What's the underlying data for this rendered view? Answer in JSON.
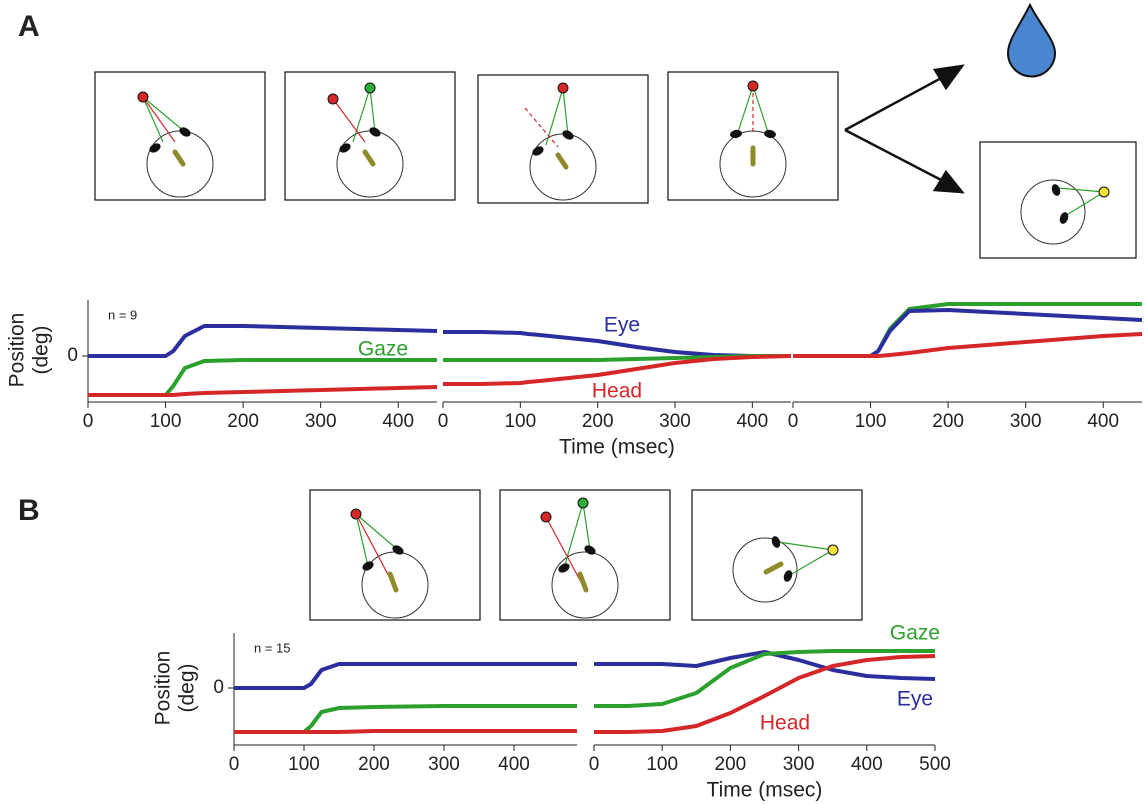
{
  "panels": [
    {
      "label": "A"
    },
    {
      "label": "B"
    }
  ],
  "chart_data": [
    {
      "type": "line",
      "annotation": "n = 9",
      "ylabel": [
        "Position",
        "(deg)"
      ],
      "x": [
        0,
        50,
        100,
        110,
        125,
        150,
        200,
        250,
        300,
        350,
        400,
        450
      ],
      "xlim": [
        0,
        450
      ],
      "xticks": [
        0,
        100,
        200,
        300,
        400
      ],
      "ylim": [
        -44,
        56
      ],
      "yticks": [
        0
      ],
      "series": [
        {
          "color": "#2b2f9e",
          "values": [
            0,
            0,
            0,
            5,
            20,
            30,
            30,
            29,
            28,
            27,
            26,
            25
          ]
        },
        {
          "name": "Gaze",
          "color": "#2ca02c",
          "values": [
            -39,
            -39,
            -39,
            -30,
            -12,
            -5,
            -4,
            -4,
            -4,
            -4,
            -4,
            -4
          ]
        },
        {
          "color": "#d62728",
          "values": [
            -39,
            -39,
            -39,
            -39,
            -38,
            -37,
            -36,
            -35,
            -34,
            -33,
            -32,
            -31
          ]
        }
      ]
    },
    {
      "type": "line",
      "xlabel": "Time (msec)",
      "x": [
        0,
        50,
        100,
        110,
        125,
        150,
        200,
        250,
        300,
        350,
        400,
        450
      ],
      "xlim": [
        0,
        450
      ],
      "xticks": [
        0,
        100,
        200,
        300,
        400
      ],
      "ylim": [
        -44,
        56
      ],
      "series": [
        {
          "name": "Eye",
          "color": "#2b2f9e",
          "values": [
            24,
            24,
            23,
            22,
            21,
            19,
            15,
            9,
            4,
            1,
            0,
            0
          ]
        },
        {
          "color": "#2ca02c",
          "values": [
            -4,
            -4,
            -4,
            -4,
            -4,
            -4,
            -4,
            -3,
            -2,
            -1,
            0,
            0
          ]
        },
        {
          "name": "Head",
          "color": "#d62728",
          "values": [
            -28,
            -28,
            -27,
            -26,
            -25,
            -23,
            -19,
            -13,
            -7,
            -3,
            -1,
            0
          ]
        }
      ]
    },
    {
      "type": "line",
      "x": [
        0,
        50,
        100,
        110,
        125,
        150,
        200,
        250,
        300,
        350,
        400,
        450
      ],
      "xlim": [
        0,
        450
      ],
      "xticks": [
        0,
        100,
        200,
        300,
        400
      ],
      "ylim": [
        -44,
        56
      ],
      "series": [
        {
          "color": "#2ca02c",
          "values": [
            0,
            0,
            0,
            5,
            27,
            47,
            52,
            52,
            52,
            52,
            52,
            52
          ]
        },
        {
          "color": "#2b2f9e",
          "values": [
            0,
            0,
            0,
            5,
            25,
            45,
            46,
            44,
            42,
            40,
            38,
            36
          ]
        },
        {
          "color": "#d62728",
          "values": [
            0,
            0,
            0,
            0,
            1,
            3,
            8,
            11,
            14,
            17,
            20,
            22
          ]
        }
      ]
    },
    {
      "type": "line",
      "annotation": "n = 15",
      "ylabel": [
        "Position",
        "(deg)"
      ],
      "x": [
        0,
        50,
        100,
        110,
        125,
        150,
        200,
        300,
        400,
        490
      ],
      "xlim": [
        0,
        490
      ],
      "xticks": [
        0,
        100,
        200,
        300,
        400
      ],
      "ylim": [
        -55,
        55
      ],
      "yticks": [
        0
      ],
      "series": [
        {
          "color": "#2b2f9e",
          "values": [
            0,
            0,
            0,
            4,
            18,
            24,
            24,
            24,
            24,
            24
          ]
        },
        {
          "color": "#2ca02c",
          "values": [
            -44,
            -44,
            -44,
            -38,
            -24,
            -20,
            -19,
            -18,
            -18,
            -18
          ]
        },
        {
          "color": "#d62728",
          "values": [
            -44,
            -44,
            -44,
            -44,
            -44,
            -44,
            -43,
            -43,
            -43,
            -43
          ]
        }
      ]
    },
    {
      "type": "line",
      "xlabel": "Time (msec)",
      "x": [
        0,
        50,
        100,
        150,
        200,
        250,
        300,
        350,
        400,
        450,
        500
      ],
      "xlim": [
        0,
        500
      ],
      "xticks": [
        0,
        100,
        200,
        300,
        400,
        500
      ],
      "ylim": [
        -55,
        55
      ],
      "series": [
        {
          "name": "Eye",
          "color": "#2b2f9e",
          "values": [
            24,
            24,
            24,
            22,
            30,
            36,
            28,
            18,
            12,
            10,
            9
          ]
        },
        {
          "name": "Gaze",
          "color": "#2ca02c",
          "values": [
            -18,
            -18,
            -16,
            -5,
            20,
            34,
            36,
            37,
            37,
            37,
            37
          ]
        },
        {
          "name": "Head",
          "color": "#d62728",
          "values": [
            -44,
            -44,
            -43,
            -38,
            -25,
            -8,
            10,
            22,
            28,
            31,
            32
          ]
        }
      ]
    }
  ]
}
